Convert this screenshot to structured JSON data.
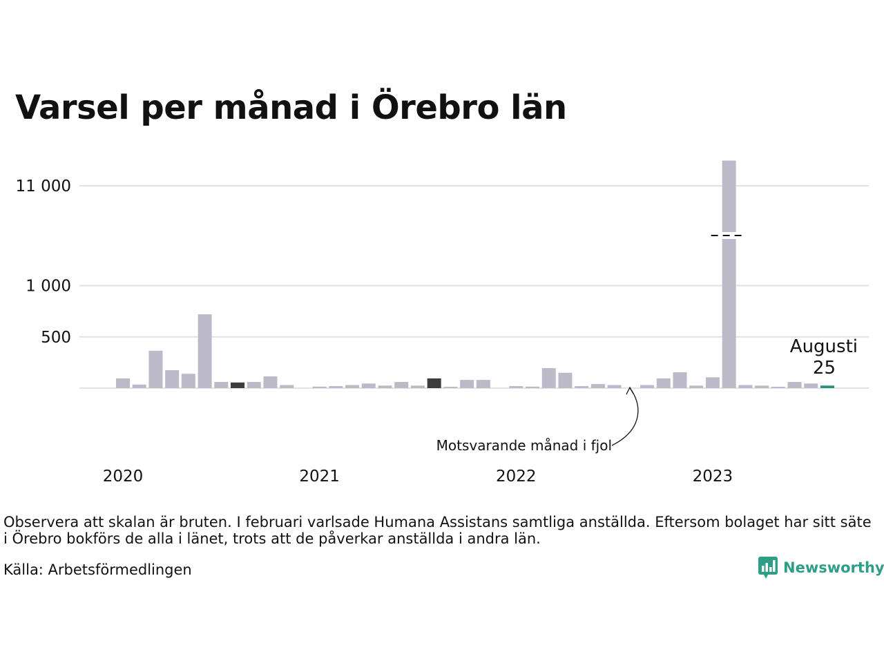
{
  "title": "Varsel per månad i Örebro län",
  "note": "Observera att skalan är bruten. I februari varlsade Humana Assistans samtliga anställda. Eftersom bolaget har sitt säte i Örebro bokförs de alla i länet, trots att de påverkar anställda i andra län.",
  "source": "Källa: Arbetsförmedlingen",
  "logo_text": "Newsworthy",
  "logo_icon": "bar-chart-logo-icon",
  "chart_data": {
    "type": "bar",
    "title": "Varsel per månad i Örebro län",
    "y_scale": "broken",
    "y_ticks": [
      {
        "label": "500",
        "value": 500
      },
      {
        "label": "1 000",
        "value": 1000
      },
      {
        "label": "11 000",
        "value": 11000
      }
    ],
    "x_ticks": [
      {
        "label": "2020",
        "index": 0
      },
      {
        "label": "2021",
        "index": 12
      },
      {
        "label": "2022",
        "index": 24
      },
      {
        "label": "2023",
        "index": 36
      }
    ],
    "grid": true,
    "categories": [
      "2020-01",
      "2020-02",
      "2020-03",
      "2020-04",
      "2020-05",
      "2020-06",
      "2020-07",
      "2020-08",
      "2020-09",
      "2020-10",
      "2020-11",
      "2020-12",
      "2021-01",
      "2021-02",
      "2021-03",
      "2021-04",
      "2021-05",
      "2021-06",
      "2021-07",
      "2021-08",
      "2021-09",
      "2021-10",
      "2021-11",
      "2021-12",
      "2022-01",
      "2022-02",
      "2022-03",
      "2022-04",
      "2022-05",
      "2022-06",
      "2022-07",
      "2022-08",
      "2022-09",
      "2022-10",
      "2022-11",
      "2022-12",
      "2023-01",
      "2023-02",
      "2023-03",
      "2023-04",
      "2023-05",
      "2023-06",
      "2023-07",
      "2023-08"
    ],
    "values": [
      95,
      35,
      365,
      175,
      140,
      720,
      60,
      55,
      60,
      115,
      30,
      0,
      15,
      20,
      30,
      45,
      25,
      60,
      25,
      95,
      10,
      80,
      80,
      0,
      20,
      15,
      195,
      150,
      20,
      40,
      30,
      0,
      30,
      95,
      155,
      25,
      105,
      11500,
      30,
      25,
      10,
      60,
      45,
      25
    ],
    "highlight": [
      {
        "index": 7,
        "role": "corresponding",
        "color": "#3d3d3d"
      },
      {
        "index": 19,
        "role": "corresponding",
        "color": "#3d3d3d"
      },
      {
        "index": 43,
        "role": "latest",
        "color": "#2a8f7e"
      }
    ],
    "bar_color": "#bcbac8",
    "annotations": {
      "corresponding_label": "Motsvarande månad i fjol",
      "latest_month": "Augusti",
      "latest_value": "25"
    }
  }
}
